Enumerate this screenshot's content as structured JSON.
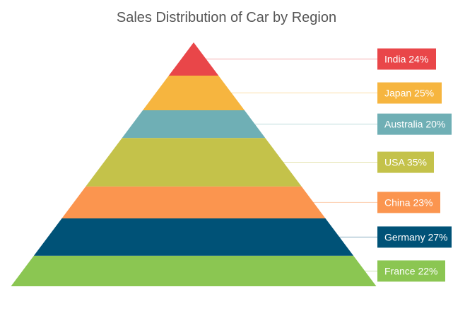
{
  "chart_data": {
    "type": "pyramid",
    "title": "Sales Distribution of Car by Region",
    "order": "top-to-bottom",
    "categories": [
      "India",
      "Japan",
      "Australia",
      "USA",
      "China",
      "Germany",
      "France"
    ],
    "values": [
      24,
      25,
      20,
      35,
      23,
      27,
      22
    ],
    "labels": [
      "India 24%",
      "Japan 25%",
      "Australia 20%",
      "USA 35%",
      "China 23%",
      "Germany 27%",
      "France 22%"
    ],
    "colors": [
      "#e94649",
      "#f6b53f",
      "#6fafb5",
      "#c4c24a",
      "#fb954f",
      "#005277",
      "#8bc652"
    ],
    "label_placement": "right",
    "connector_color": "#e6e6e6"
  }
}
